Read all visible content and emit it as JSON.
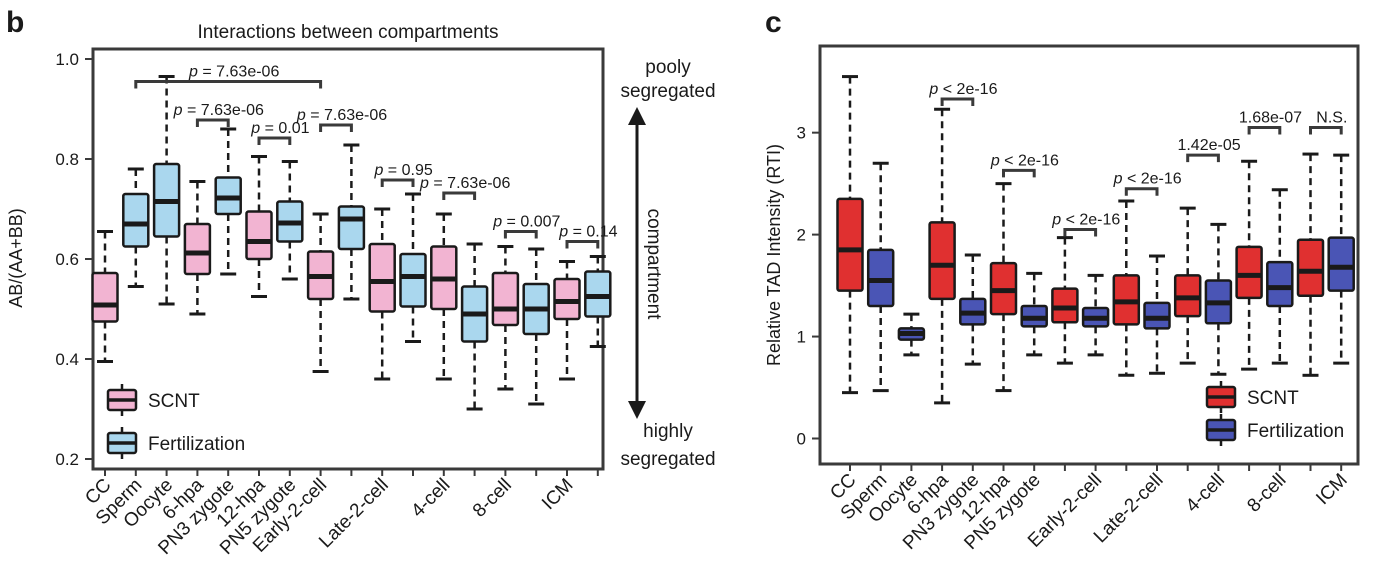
{
  "panel_b": {
    "letter": "b",
    "title": "Interactions between compartments",
    "right_top_label_1": "pooly",
    "right_top_label_2": "segregated",
    "right_mid_label": "compartment",
    "right_bottom_label_1": "highly",
    "right_bottom_label_2": "segregated"
  },
  "panel_c": {
    "letter": "c"
  },
  "colors": {
    "scnt_b": "#f2b4d2",
    "fert_b": "#aad7ee",
    "scnt_c": "#e03030",
    "fert_c": "#4a55b5"
  },
  "chart_data": [
    {
      "type": "box",
      "title": "Interactions between compartments",
      "xlabel": "",
      "ylabel": "AB/(AA+BB)",
      "ylim": [
        0.18,
        1.02
      ],
      "yticks": [
        "0.2",
        "0.4",
        "0.6",
        "0.8",
        "1.0"
      ],
      "ytick_values": [
        0.2,
        0.4,
        0.6,
        0.8,
        1.0
      ],
      "legend": [
        "SCNT",
        "Fertilization"
      ],
      "legend_position": "bottom-left",
      "categories": [
        "CC",
        "Sperm",
        "Oocyte",
        "6-hpa",
        "PN3 zygote",
        "12-hpa",
        "PN5 zygote",
        "Early-2-cell",
        "",
        "Late-2-cell",
        "",
        "4-cell",
        "",
        "8-cell",
        "",
        "ICM",
        ""
      ],
      "boxes": [
        {
          "series": "SCNT",
          "whislo": 0.395,
          "q1": 0.475,
          "med": 0.508,
          "q3": 0.572,
          "whishi": 0.655
        },
        {
          "series": "Fertilization",
          "whislo": 0.545,
          "q1": 0.625,
          "med": 0.67,
          "q3": 0.73,
          "whishi": 0.78
        },
        {
          "series": "Fertilization",
          "whislo": 0.51,
          "q1": 0.645,
          "med": 0.715,
          "q3": 0.79,
          "whishi": 0.965
        },
        {
          "series": "SCNT",
          "whislo": 0.49,
          "q1": 0.57,
          "med": 0.612,
          "q3": 0.67,
          "whishi": 0.755
        },
        {
          "series": "Fertilization",
          "whislo": 0.57,
          "q1": 0.69,
          "med": 0.722,
          "q3": 0.763,
          "whishi": 0.86
        },
        {
          "series": "SCNT",
          "whislo": 0.525,
          "q1": 0.6,
          "med": 0.635,
          "q3": 0.695,
          "whishi": 0.805
        },
        {
          "series": "Fertilization",
          "whislo": 0.56,
          "q1": 0.635,
          "med": 0.672,
          "q3": 0.715,
          "whishi": 0.795
        },
        {
          "series": "SCNT",
          "whislo": 0.375,
          "q1": 0.52,
          "med": 0.565,
          "q3": 0.615,
          "whishi": 0.69
        },
        {
          "series": "Fertilization",
          "whislo": 0.52,
          "q1": 0.62,
          "med": 0.68,
          "q3": 0.705,
          "whishi": 0.828
        },
        {
          "series": "SCNT",
          "whislo": 0.36,
          "q1": 0.495,
          "med": 0.555,
          "q3": 0.63,
          "whishi": 0.7
        },
        {
          "series": "Fertilization",
          "whislo": 0.435,
          "q1": 0.505,
          "med": 0.565,
          "q3": 0.61,
          "whishi": 0.73
        },
        {
          "series": "SCNT",
          "whislo": 0.36,
          "q1": 0.5,
          "med": 0.56,
          "q3": 0.625,
          "whishi": 0.69
        },
        {
          "series": "Fertilization",
          "whislo": 0.3,
          "q1": 0.435,
          "med": 0.49,
          "q3": 0.545,
          "whishi": 0.63
        },
        {
          "series": "SCNT",
          "whislo": 0.34,
          "q1": 0.468,
          "med": 0.5,
          "q3": 0.572,
          "whishi": 0.625
        },
        {
          "series": "Fertilization",
          "whislo": 0.31,
          "q1": 0.45,
          "med": 0.5,
          "q3": 0.55,
          "whishi": 0.62
        },
        {
          "series": "SCNT",
          "whislo": 0.36,
          "q1": 0.48,
          "med": 0.515,
          "q3": 0.56,
          "whishi": 0.595
        },
        {
          "series": "Fertilization",
          "whislo": 0.425,
          "q1": 0.485,
          "med": 0.525,
          "q3": 0.575,
          "whishi": 0.605
        }
      ],
      "annotations": [
        {
          "text": "p = 7.63e-06",
          "from": 2,
          "to": 8,
          "y": 0.955
        },
        {
          "text": "p = 7.63e-06",
          "from": 4,
          "to": 5,
          "y": 0.878
        },
        {
          "text": "p = 0.01",
          "from": 6,
          "to": 7,
          "y": 0.842
        },
        {
          "text": "p = 7.63e-06",
          "from": 8,
          "to": 9,
          "y": 0.868
        },
        {
          "text": "p = 0.95",
          "from": 10,
          "to": 11,
          "y": 0.758
        },
        {
          "text": "p = 7.63e-06",
          "from": 12,
          "to": 13,
          "y": 0.732
        },
        {
          "text": "p = 0.007",
          "from": 14,
          "to": 15,
          "y": 0.655
        },
        {
          "text": "p = 0.14",
          "from": 16,
          "to": 17,
          "y": 0.635
        }
      ]
    },
    {
      "type": "box",
      "title": "",
      "xlabel": "",
      "ylabel": "Relative TAD Intensity (RTI)",
      "ylim": [
        -0.25,
        3.85
      ],
      "yticks": [
        "0",
        "1",
        "2",
        "3"
      ],
      "ytick_values": [
        0,
        1,
        2,
        3
      ],
      "legend": [
        "SCNT",
        "Fertilization"
      ],
      "legend_position": "bottom-right",
      "categories": [
        "CC",
        "Sperm",
        "Oocyte",
        "6-hpa",
        "PN3 zygote",
        "12-hpa",
        "PN5 zygote",
        "",
        "Early-2-cell",
        "",
        "Late-2-cell",
        "",
        "4-cell",
        "",
        "8-cell",
        "",
        "ICM"
      ],
      "boxes": [
        {
          "series": "SCNT",
          "whislo": 0.45,
          "q1": 1.45,
          "med": 1.85,
          "q3": 2.35,
          "whishi": 3.55
        },
        {
          "series": "Fertilization",
          "whislo": 0.47,
          "q1": 1.3,
          "med": 1.55,
          "q3": 1.85,
          "whishi": 2.7
        },
        {
          "series": "Fertilization",
          "whislo": 0.82,
          "q1": 0.97,
          "med": 1.03,
          "q3": 1.08,
          "whishi": 1.22
        },
        {
          "series": "SCNT",
          "whislo": 0.35,
          "q1": 1.37,
          "med": 1.7,
          "q3": 2.12,
          "whishi": 3.23
        },
        {
          "series": "Fertilization",
          "whislo": 0.73,
          "q1": 1.12,
          "med": 1.23,
          "q3": 1.37,
          "whishi": 1.8
        },
        {
          "series": "SCNT",
          "whislo": 0.47,
          "q1": 1.22,
          "med": 1.45,
          "q3": 1.72,
          "whishi": 2.5
        },
        {
          "series": "Fertilization",
          "whislo": 0.82,
          "q1": 1.1,
          "med": 1.18,
          "q3": 1.3,
          "whishi": 1.62
        },
        {
          "series": "SCNT",
          "whislo": 0.74,
          "q1": 1.14,
          "med": 1.28,
          "q3": 1.47,
          "whishi": 1.97
        },
        {
          "series": "Fertilization",
          "whislo": 0.82,
          "q1": 1.1,
          "med": 1.18,
          "q3": 1.28,
          "whishi": 1.6
        },
        {
          "series": "SCNT",
          "whislo": 0.62,
          "q1": 1.12,
          "med": 1.34,
          "q3": 1.6,
          "whishi": 2.33
        },
        {
          "series": "Fertilization",
          "whislo": 0.64,
          "q1": 1.08,
          "med": 1.18,
          "q3": 1.33,
          "whishi": 1.79
        },
        {
          "series": "SCNT",
          "whislo": 0.74,
          "q1": 1.2,
          "med": 1.38,
          "q3": 1.6,
          "whishi": 2.26
        },
        {
          "series": "Fertilization",
          "whislo": 0.63,
          "q1": 1.13,
          "med": 1.33,
          "q3": 1.55,
          "whishi": 2.1
        },
        {
          "series": "SCNT",
          "whislo": 0.68,
          "q1": 1.38,
          "med": 1.6,
          "q3": 1.88,
          "whishi": 2.72
        },
        {
          "series": "Fertilization",
          "whislo": 0.74,
          "q1": 1.3,
          "med": 1.48,
          "q3": 1.73,
          "whishi": 2.44
        },
        {
          "series": "SCNT",
          "whislo": 0.62,
          "q1": 1.4,
          "med": 1.64,
          "q3": 1.95,
          "whishi": 2.79
        },
        {
          "series": "Fertilization",
          "whislo": 0.74,
          "q1": 1.45,
          "med": 1.68,
          "q3": 1.97,
          "whishi": 2.78
        }
      ],
      "annotations": [
        {
          "text": "p < 2e-16",
          "from": 4,
          "to": 5,
          "y": 3.33
        },
        {
          "text": "p < 2e-16",
          "from": 6,
          "to": 7,
          "y": 2.63
        },
        {
          "text": "p < 2e-16",
          "from": 8,
          "to": 9,
          "y": 2.05
        },
        {
          "text": "p < 2e-16",
          "from": 10,
          "to": 11,
          "y": 2.45
        },
        {
          "text": "1.42e-05",
          "from": 12,
          "to": 13,
          "y": 2.78
        },
        {
          "text": "1.68e-07",
          "from": 14,
          "to": 15,
          "y": 3.05
        },
        {
          "text": "N.S.",
          "from": 16,
          "to": 17,
          "y": 3.05
        }
      ]
    }
  ]
}
